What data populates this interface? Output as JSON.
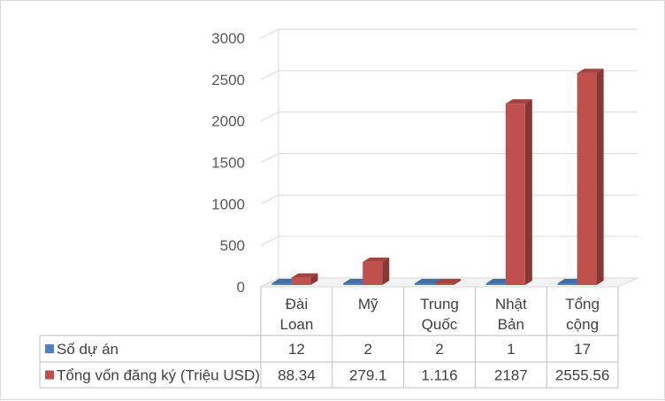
{
  "chart_data": {
    "type": "bar",
    "categories": [
      [
        "Đài",
        "Loan"
      ],
      [
        "Mỹ"
      ],
      [
        "Trung",
        "Quốc"
      ],
      [
        "Nhật",
        "Bản"
      ],
      [
        "Tổng",
        "cộng"
      ]
    ],
    "series": [
      {
        "name": "Số dự án",
        "values": [
          12,
          2,
          2,
          1,
          17
        ],
        "labels": [
          "12",
          "2",
          "2",
          "1",
          "17"
        ],
        "color": "#4f81bd"
      },
      {
        "name": "Tổng vốn đăng ký (Triệu USD)",
        "values": [
          88.34,
          279.1,
          1.116,
          2187,
          2555.56
        ],
        "labels": [
          "88.34",
          "279.1",
          "1.116",
          "2187",
          "2555.56"
        ],
        "color": "#c0504d"
      }
    ],
    "ylim": [
      0,
      3000
    ],
    "yticks": [
      "0",
      "500",
      "1000",
      "1500",
      "2000",
      "2500",
      "3000"
    ],
    "grid": true,
    "data_table": true,
    "style": "3d-clustered-column"
  }
}
